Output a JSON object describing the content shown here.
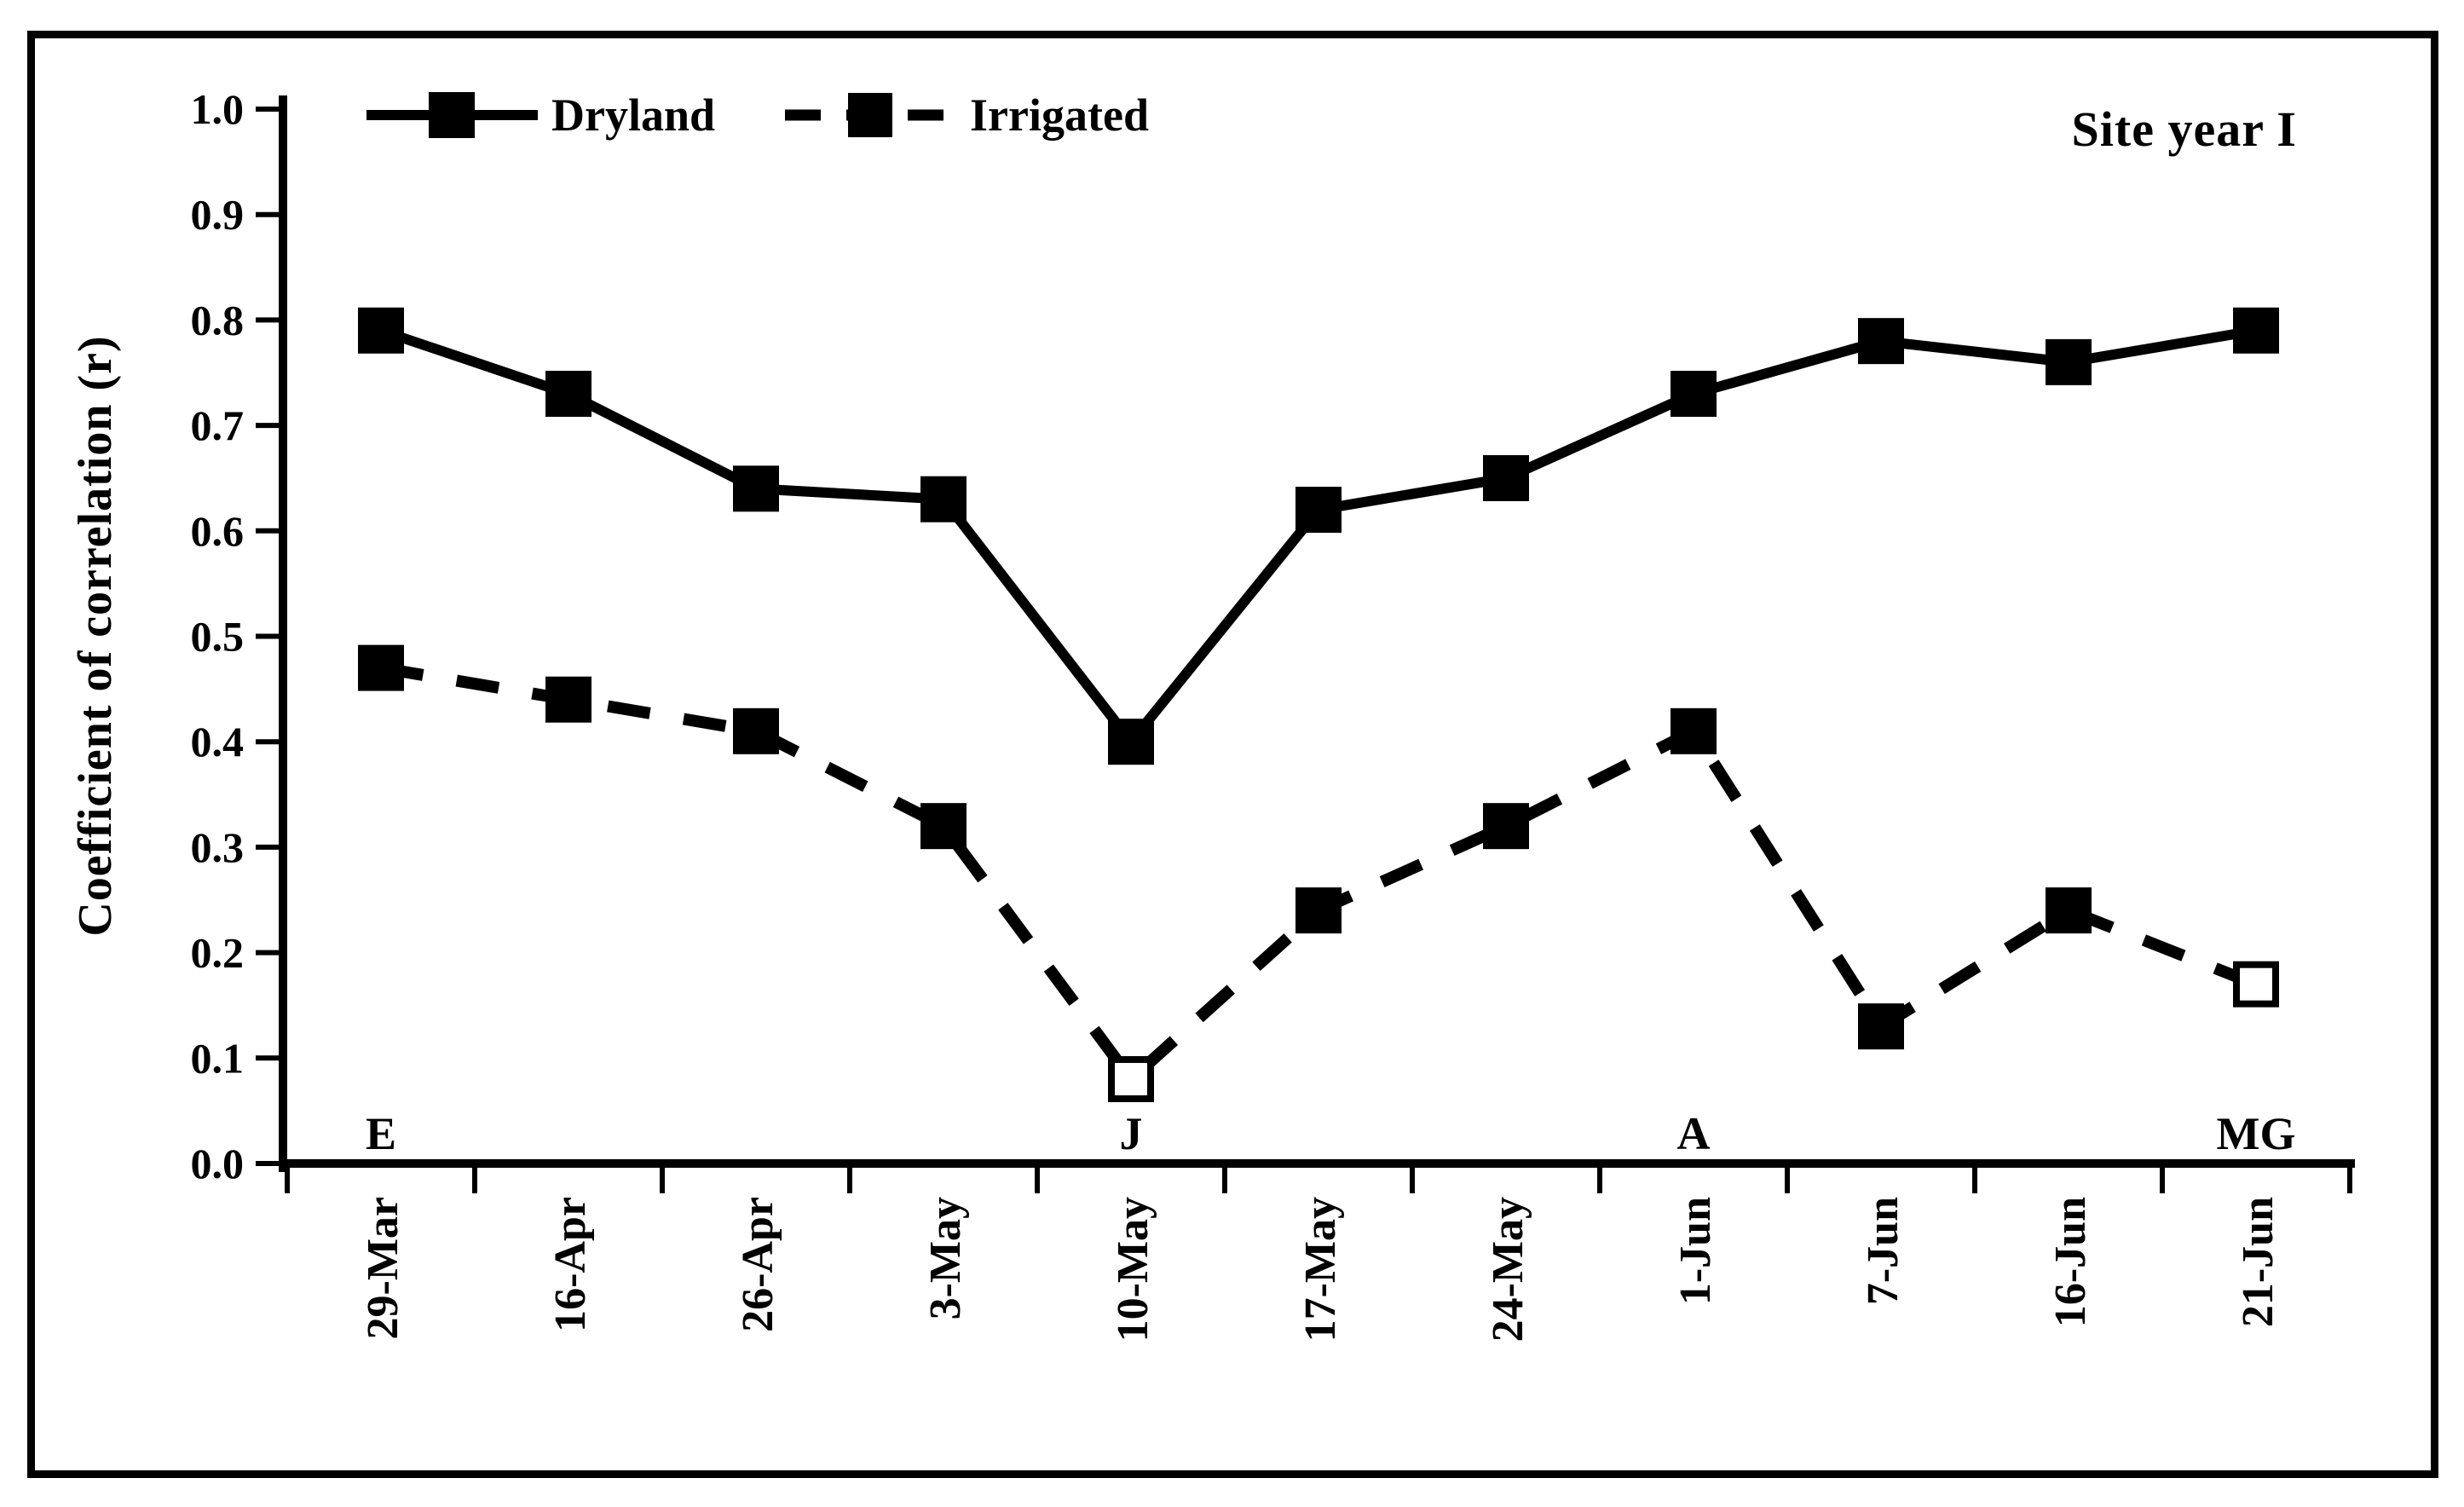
{
  "chart_data": {
    "type": "line",
    "title": "Site year I",
    "ylabel": "Coefficient of correlation (r)",
    "xlabel": "",
    "categories": [
      "29-Mar",
      "16-Apr",
      "26-Apr",
      "3-May",
      "10-May",
      "17-May",
      "24-May",
      "1-Jun",
      "7-Jun",
      "16-Jun",
      "21-Jun"
    ],
    "series": [
      {
        "name": "Dryland",
        "line_style": "solid",
        "marker": "filled-square",
        "values": [
          0.79,
          0.73,
          0.64,
          0.63,
          0.4,
          0.62,
          0.65,
          0.73,
          0.78,
          0.76,
          0.79
        ],
        "open_marker_indices": []
      },
      {
        "name": "Irrigated",
        "line_style": "dashed",
        "marker": "filled-square",
        "values": [
          0.47,
          0.44,
          0.41,
          0.32,
          0.08,
          0.24,
          0.32,
          0.41,
          0.13,
          0.24,
          0.17
        ],
        "open_marker_indices": [
          4,
          10
        ]
      }
    ],
    "ylim": [
      0.0,
      1.0
    ],
    "ytick_step": 0.1,
    "ytick_labels": [
      "0.0",
      "0.1",
      "0.2",
      "0.3",
      "0.4",
      "0.5",
      "0.6",
      "0.7",
      "0.8",
      "0.9",
      "1.0"
    ],
    "grid": false,
    "legend_position": "top-left-inside",
    "annotations": [
      {
        "text": "E",
        "category_index": 0
      },
      {
        "text": "J",
        "category_index": 4
      },
      {
        "text": "A",
        "category_index": 7
      },
      {
        "text": "MG",
        "category_index": 10
      }
    ],
    "colors": {
      "foreground": "#000000",
      "background": "#ffffff"
    }
  }
}
